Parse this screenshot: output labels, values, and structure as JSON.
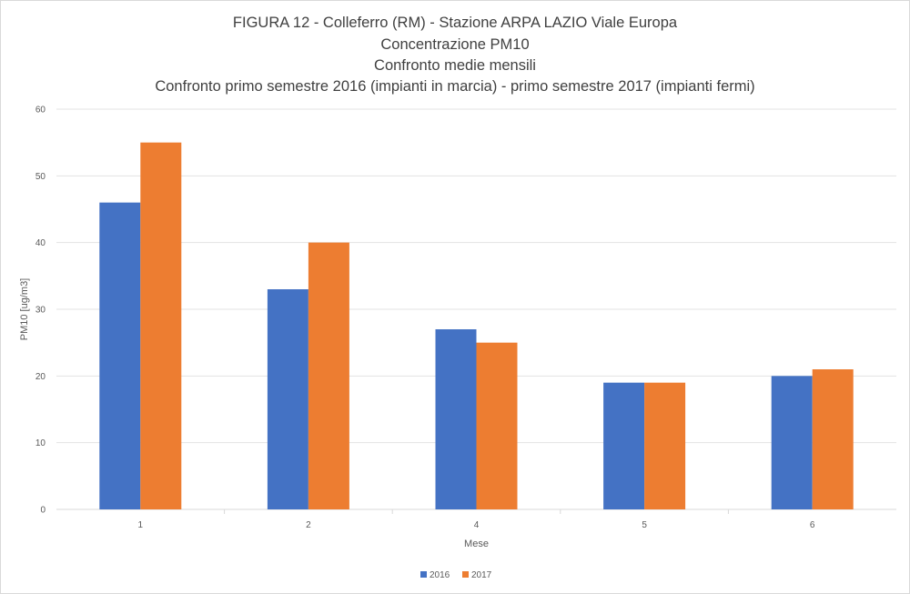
{
  "chart_data": {
    "type": "bar",
    "title": [
      "FIGURA 12 - Colleferro  (RM) - Stazione ARPA LAZIO Viale Europa",
      "Concentrazione PM10",
      "Confronto medie mensili",
      "Confronto primo semestre 2016 (impianti in marcia) - primo semestre 2017 (impianti fermi)"
    ],
    "xlabel": "Mese",
    "ylabel": "PM10 [ug/m3]",
    "categories": [
      "1",
      "2",
      "4",
      "5",
      "6"
    ],
    "series": [
      {
        "name": "2016",
        "color": "#4472c4",
        "values": [
          46,
          33,
          27,
          19,
          20
        ]
      },
      {
        "name": "2017",
        "color": "#ed7d31",
        "values": [
          55,
          40,
          25,
          19,
          21
        ]
      }
    ],
    "ylim": [
      0,
      60
    ],
    "yticks": [
      0,
      10,
      20,
      30,
      40,
      50,
      60
    ],
    "grid": true,
    "legend": "bottom"
  }
}
